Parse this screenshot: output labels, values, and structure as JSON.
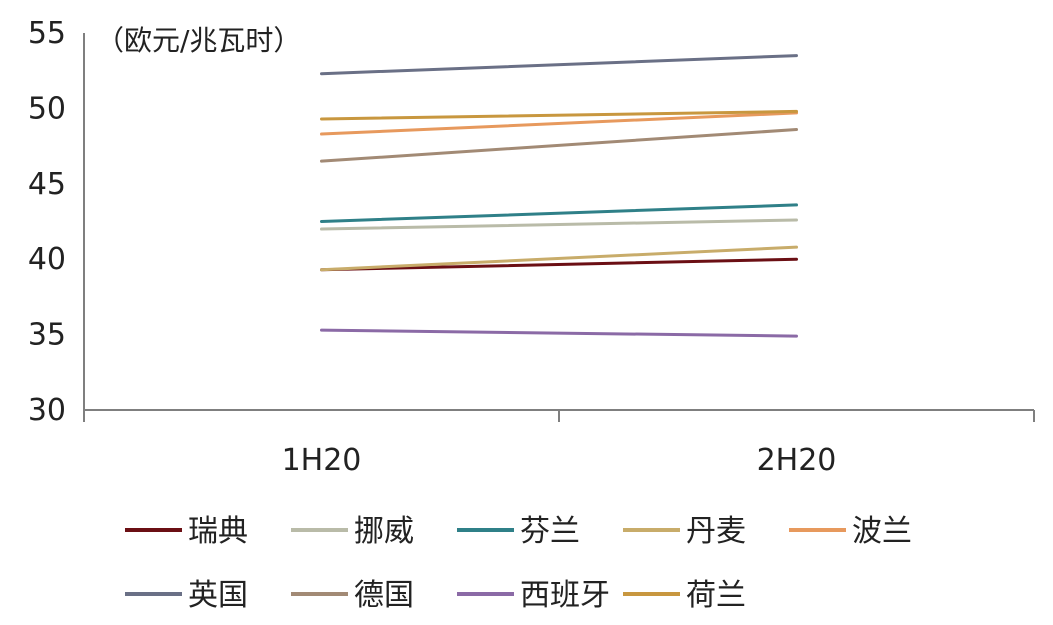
{
  "chart_data": {
    "type": "line",
    "y_unit_label": "（欧元/兆瓦时）",
    "categories": [
      "1H20",
      "2H20"
    ],
    "ylim": [
      30,
      55
    ],
    "yticks": [
      30,
      35,
      40,
      45,
      50,
      55
    ],
    "grid": false,
    "legend_position": "bottom",
    "series": [
      {
        "name": "瑞典",
        "color": "#6b0f14",
        "values": [
          39.3,
          40.0
        ]
      },
      {
        "name": "挪威",
        "color": "#b9bba8",
        "values": [
          42.0,
          42.6
        ]
      },
      {
        "name": "芬兰",
        "color": "#2f8088",
        "values": [
          42.5,
          43.6
        ]
      },
      {
        "name": "丹麦",
        "color": "#c8ac6a",
        "values": [
          39.3,
          40.8
        ]
      },
      {
        "name": "波兰",
        "color": "#e7995d",
        "values": [
          48.3,
          49.7
        ]
      },
      {
        "name": "英国",
        "color": "#6a7086",
        "values": [
          52.3,
          53.5
        ]
      },
      {
        "name": "德国",
        "color": "#a28a75",
        "values": [
          46.5,
          48.6
        ]
      },
      {
        "name": "西班牙",
        "color": "#8b6aa6",
        "values": [
          35.3,
          34.9
        ]
      },
      {
        "name": "荷兰",
        "color": "#c8973f",
        "values": [
          49.3,
          49.8
        ]
      }
    ]
  }
}
